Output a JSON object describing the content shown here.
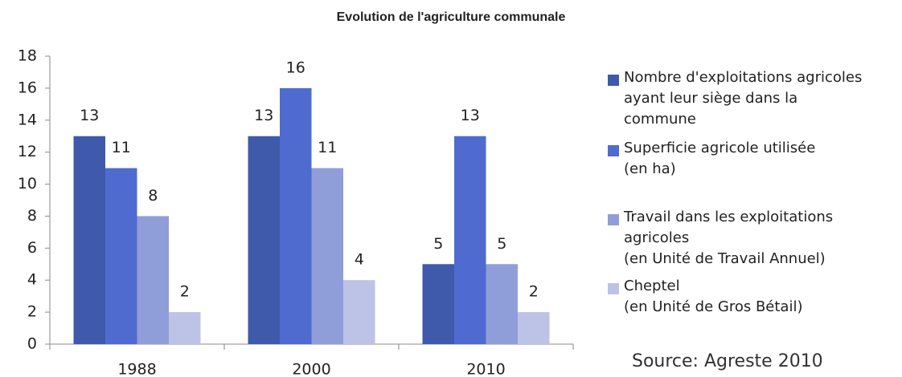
{
  "chart_data": {
    "type": "bar",
    "title": "Evolution de l'agriculture communale",
    "categories": [
      "1988",
      "2000",
      "2010"
    ],
    "series": [
      {
        "name": "Nombre d'exploitations agricoles\nayant leur siège dans la\ncommune",
        "color": "#3f5aab",
        "values": [
          13,
          13,
          5
        ]
      },
      {
        "name": "Superficie agricole utilisée\n(en ha)",
        "color": "#4f6bcf",
        "values": [
          11,
          16,
          13
        ]
      },
      {
        "name": "Travail dans les exploitations\nagricoles\n(en Unité de Travail Annuel)",
        "color": "#8f9ed8",
        "values": [
          8,
          11,
          5
        ]
      },
      {
        "name": "Cheptel\n(en Unité de Gros Bétail)",
        "color": "#bcc3e6",
        "values": [
          2,
          4,
          2
        ]
      }
    ],
    "ylim": [
      0,
      18
    ],
    "yticks": [
      0,
      2,
      4,
      6,
      8,
      10,
      12,
      14,
      16,
      18
    ],
    "source": "Source: Agreste 2010"
  }
}
